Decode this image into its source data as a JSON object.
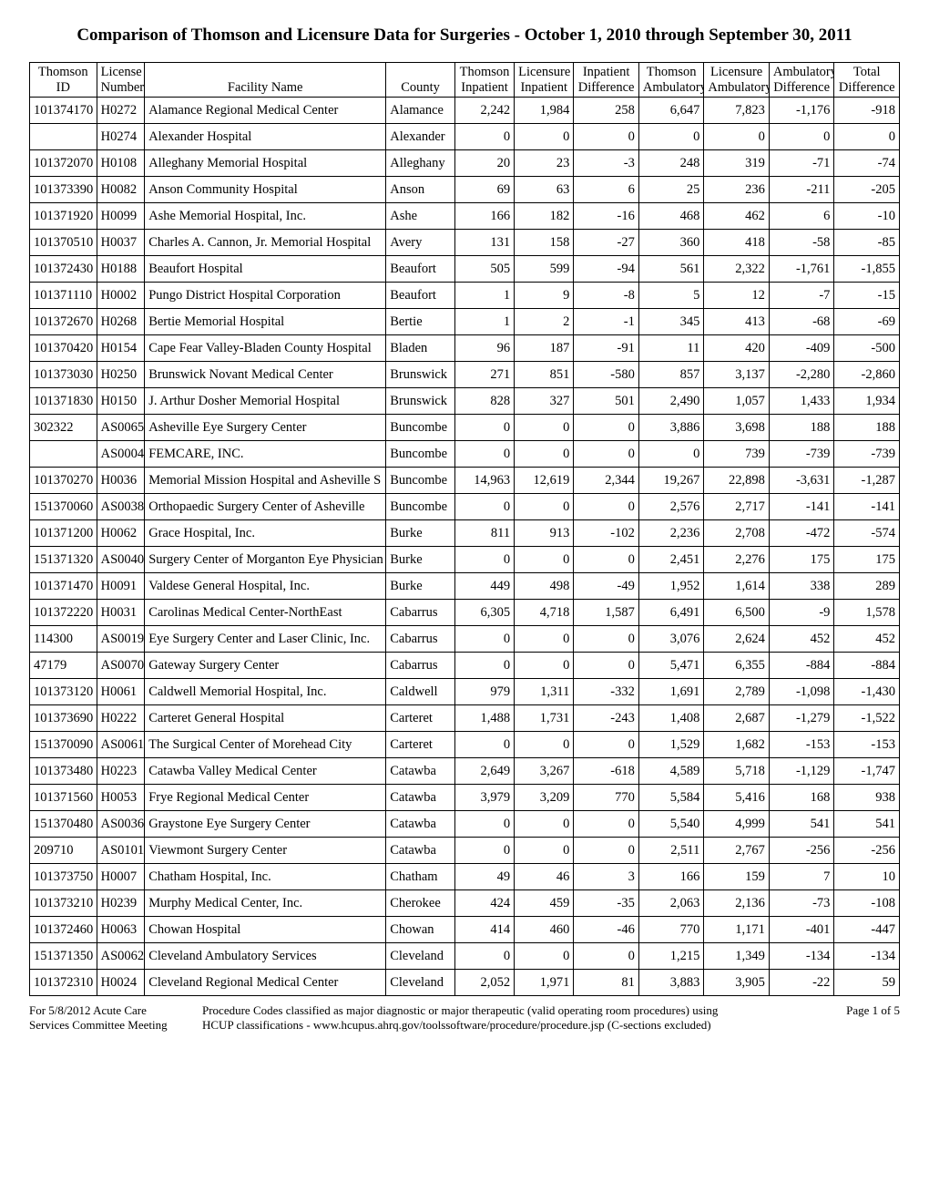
{
  "title": "Comparison of Thomson and Licensure Data for Surgeries - October 1, 2010 through September 30, 2011",
  "columns": [
    {
      "l1": "Thomson",
      "l2": "ID"
    },
    {
      "l1": "License",
      "l2": "Number"
    },
    {
      "l1": "",
      "l2": "Facility Name"
    },
    {
      "l1": "",
      "l2": "County"
    },
    {
      "l1": "Thomson",
      "l2": "Inpatient"
    },
    {
      "l1": "Licensure",
      "l2": "Inpatient"
    },
    {
      "l1": "Inpatient",
      "l2": "Difference"
    },
    {
      "l1": "Thomson",
      "l2": "Ambulatory"
    },
    {
      "l1": "Licensure",
      "l2": "Ambulatory"
    },
    {
      "l1": "Ambulatory",
      "l2": "Difference"
    },
    {
      "l1": "Total",
      "l2": "Difference"
    }
  ],
  "rows": [
    [
      "101374170",
      "H0272",
      "Alamance Regional Medical Center",
      "Alamance",
      "2,242",
      "1,984",
      "258",
      "6,647",
      "7,823",
      "-1,176",
      "-918"
    ],
    [
      "",
      "H0274",
      "Alexander Hospital",
      "Alexander",
      "0",
      "0",
      "0",
      "0",
      "0",
      "0",
      "0"
    ],
    [
      "101372070",
      "H0108",
      "Alleghany Memorial Hospital",
      "Alleghany",
      "20",
      "23",
      "-3",
      "248",
      "319",
      "-71",
      "-74"
    ],
    [
      "101373390",
      "H0082",
      "Anson Community Hospital",
      "Anson",
      "69",
      "63",
      "6",
      "25",
      "236",
      "-211",
      "-205"
    ],
    [
      "101371920",
      "H0099",
      "Ashe Memorial Hospital, Inc.",
      "Ashe",
      "166",
      "182",
      "-16",
      "468",
      "462",
      "6",
      "-10"
    ],
    [
      "101370510",
      "H0037",
      "Charles A. Cannon, Jr. Memorial Hospital",
      "Avery",
      "131",
      "158",
      "-27",
      "360",
      "418",
      "-58",
      "-85"
    ],
    [
      "101372430",
      "H0188",
      "Beaufort Hospital",
      "Beaufort",
      "505",
      "599",
      "-94",
      "561",
      "2,322",
      "-1,761",
      "-1,855"
    ],
    [
      "101371110",
      "H0002",
      "Pungo District Hospital Corporation",
      "Beaufort",
      "1",
      "9",
      "-8",
      "5",
      "12",
      "-7",
      "-15"
    ],
    [
      "101372670",
      "H0268",
      "Bertie Memorial Hospital",
      "Bertie",
      "1",
      "2",
      "-1",
      "345",
      "413",
      "-68",
      "-69"
    ],
    [
      "101370420",
      "H0154",
      "Cape Fear Valley-Bladen County Hospital",
      "Bladen",
      "96",
      "187",
      "-91",
      "11",
      "420",
      "-409",
      "-500"
    ],
    [
      "101373030",
      "H0250",
      "Brunswick Novant Medical Center",
      "Brunswick",
      "271",
      "851",
      "-580",
      "857",
      "3,137",
      "-2,280",
      "-2,860"
    ],
    [
      "101371830",
      "H0150",
      "J. Arthur Dosher Memorial Hospital",
      "Brunswick",
      "828",
      "327",
      "501",
      "2,490",
      "1,057",
      "1,433",
      "1,934"
    ],
    [
      "302322",
      "AS0065",
      "Asheville Eye Surgery Center",
      "Buncombe",
      "0",
      "0",
      "0",
      "3,886",
      "3,698",
      "188",
      "188"
    ],
    [
      "",
      "AS0004",
      "FEMCARE, INC.",
      "Buncombe",
      "0",
      "0",
      "0",
      "0",
      "739",
      "-739",
      "-739"
    ],
    [
      "101370270",
      "H0036",
      "Memorial Mission Hospital and Asheville S",
      "Buncombe",
      "14,963",
      "12,619",
      "2,344",
      "19,267",
      "22,898",
      "-3,631",
      "-1,287"
    ],
    [
      "151370060",
      "AS0038",
      "Orthopaedic Surgery Center of Asheville",
      "Buncombe",
      "0",
      "0",
      "0",
      "2,576",
      "2,717",
      "-141",
      "-141"
    ],
    [
      "101371200",
      "H0062",
      "Grace Hospital, Inc.",
      "Burke",
      "811",
      "913",
      "-102",
      "2,236",
      "2,708",
      "-472",
      "-574"
    ],
    [
      "151371320",
      "AS0040",
      "Surgery Center of Morganton Eye Physician",
      "Burke",
      "0",
      "0",
      "0",
      "2,451",
      "2,276",
      "175",
      "175"
    ],
    [
      "101371470",
      "H0091",
      "Valdese General Hospital, Inc.",
      "Burke",
      "449",
      "498",
      "-49",
      "1,952",
      "1,614",
      "338",
      "289"
    ],
    [
      "101372220",
      "H0031",
      "Carolinas Medical Center-NorthEast",
      "Cabarrus",
      "6,305",
      "4,718",
      "1,587",
      "6,491",
      "6,500",
      "-9",
      "1,578"
    ],
    [
      "114300",
      "AS0019",
      "Eye Surgery Center and Laser Clinic, Inc.",
      "Cabarrus",
      "0",
      "0",
      "0",
      "3,076",
      "2,624",
      "452",
      "452"
    ],
    [
      "47179",
      "AS0070",
      "Gateway Surgery Center",
      "Cabarrus",
      "0",
      "0",
      "0",
      "5,471",
      "6,355",
      "-884",
      "-884"
    ],
    [
      "101373120",
      "H0061",
      "Caldwell Memorial Hospital, Inc.",
      "Caldwell",
      "979",
      "1,311",
      "-332",
      "1,691",
      "2,789",
      "-1,098",
      "-1,430"
    ],
    [
      "101373690",
      "H0222",
      "Carteret General Hospital",
      "Carteret",
      "1,488",
      "1,731",
      "-243",
      "1,408",
      "2,687",
      "-1,279",
      "-1,522"
    ],
    [
      "151370090",
      "AS0061",
      "The Surgical Center of Morehead City",
      "Carteret",
      "0",
      "0",
      "0",
      "1,529",
      "1,682",
      "-153",
      "-153"
    ],
    [
      "101373480",
      "H0223",
      "Catawba Valley Medical Center",
      "Catawba",
      "2,649",
      "3,267",
      "-618",
      "4,589",
      "5,718",
      "-1,129",
      "-1,747"
    ],
    [
      "101371560",
      "H0053",
      "Frye Regional Medical Center",
      "Catawba",
      "3,979",
      "3,209",
      "770",
      "5,584",
      "5,416",
      "168",
      "938"
    ],
    [
      "151370480",
      "AS0036",
      "Graystone Eye Surgery Center",
      "Catawba",
      "0",
      "0",
      "0",
      "5,540",
      "4,999",
      "541",
      "541"
    ],
    [
      "209710",
      "AS0101",
      "Viewmont Surgery Center",
      "Catawba",
      "0",
      "0",
      "0",
      "2,511",
      "2,767",
      "-256",
      "-256"
    ],
    [
      "101373750",
      "H0007",
      "Chatham Hospital, Inc.",
      "Chatham",
      "49",
      "46",
      "3",
      "166",
      "159",
      "7",
      "10"
    ],
    [
      "101373210",
      "H0239",
      "Murphy Medical Center, Inc.",
      "Cherokee",
      "424",
      "459",
      "-35",
      "2,063",
      "2,136",
      "-73",
      "-108"
    ],
    [
      "101372460",
      "H0063",
      "Chowan Hospital",
      "Chowan",
      "414",
      "460",
      "-46",
      "770",
      "1,171",
      "-401",
      "-447"
    ],
    [
      "151371350",
      "AS0062",
      "Cleveland Ambulatory Services",
      "Cleveland",
      "0",
      "0",
      "0",
      "1,215",
      "1,349",
      "-134",
      "-134"
    ],
    [
      "101372310",
      "H0024",
      "Cleveland Regional Medical Center",
      "Cleveland",
      "2,052",
      "1,971",
      "81",
      "3,883",
      "3,905",
      "-22",
      "59"
    ]
  ],
  "footer": {
    "left1": "For 5/8/2012 Acute Care",
    "left2": "Services Committee Meeting",
    "mid1": "Procedure Codes classified as major diagnostic or major therapeutic (valid operating room procedures) using",
    "mid2": "HCUP classifications - www.hcupus.ahrq.gov/toolssoftware/procedure/procedure.jsp  (C-sections excluded)",
    "page": "Page 1 of  5"
  }
}
